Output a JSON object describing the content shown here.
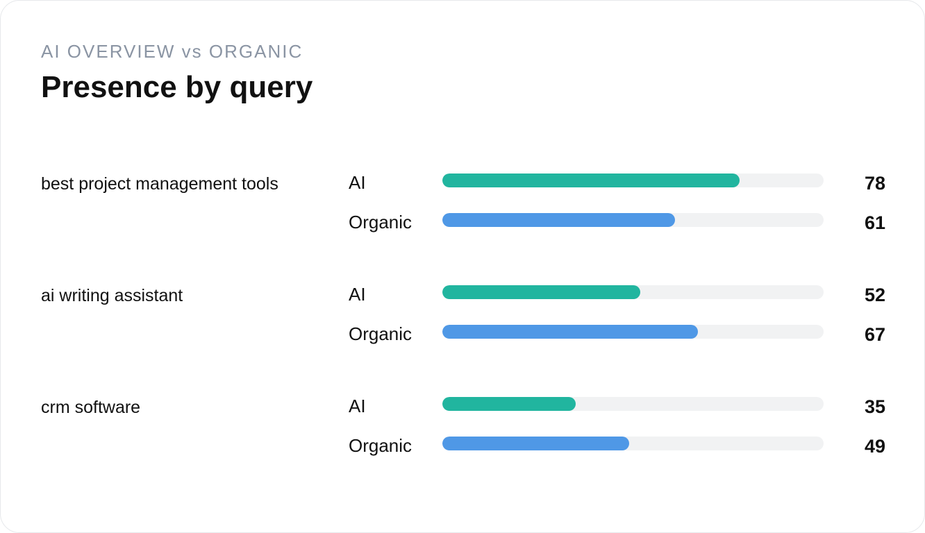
{
  "header": {
    "eyebrow": "AI OVERVIEW vs ORGANIC",
    "title": "Presence by query"
  },
  "colors": {
    "ai": "#21b59f",
    "organic": "#4f98e6",
    "track": "#f1f2f3"
  },
  "chart_data": {
    "type": "bar",
    "orientation": "horizontal",
    "title": "Presence by query",
    "subtitle": "AI OVERVIEW vs ORGANIC",
    "categories": [
      "best project management tools",
      "ai writing assistant",
      "crm software"
    ],
    "series": [
      {
        "name": "AI",
        "values": [
          78,
          52,
          35
        ],
        "color": "#21b59f"
      },
      {
        "name": "Organic",
        "values": [
          61,
          67,
          49
        ],
        "color": "#4f98e6"
      }
    ],
    "xlim": [
      0,
      100
    ],
    "grid": false,
    "legend": "none"
  }
}
